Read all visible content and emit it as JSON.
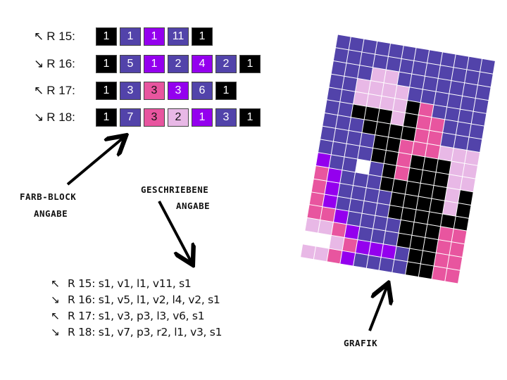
{
  "colors": {
    "s": "#000000",
    "v": "#5243aa",
    "l": "#9400ee",
    "p": "#e8559f",
    "r": "#e8b8e6",
    "w": "#ffffff"
  },
  "block_rows": [
    {
      "label": "R 15:",
      "arrow": "↖",
      "blocks": [
        {
          "c": "s",
          "n": "1"
        },
        {
          "c": "v",
          "n": "1"
        },
        {
          "c": "l",
          "n": "1"
        },
        {
          "c": "v",
          "n": "11"
        },
        {
          "c": "s",
          "n": "1"
        }
      ]
    },
    {
      "label": "R 16:",
      "arrow": "↘",
      "blocks": [
        {
          "c": "s",
          "n": "1"
        },
        {
          "c": "v",
          "n": "5"
        },
        {
          "c": "l",
          "n": "1"
        },
        {
          "c": "v",
          "n": "2"
        },
        {
          "c": "l",
          "n": "4"
        },
        {
          "c": "v",
          "n": "2"
        },
        {
          "c": "s",
          "n": "1"
        }
      ]
    },
    {
      "label": "R 17:",
      "arrow": "↖",
      "blocks": [
        {
          "c": "s",
          "n": "1"
        },
        {
          "c": "v",
          "n": "3"
        },
        {
          "c": "p",
          "n": "3"
        },
        {
          "c": "l",
          "n": "3"
        },
        {
          "c": "v",
          "n": "6"
        },
        {
          "c": "s",
          "n": "1"
        }
      ]
    },
    {
      "label": "R 18:",
      "arrow": "↘",
      "blocks": [
        {
          "c": "s",
          "n": "1"
        },
        {
          "c": "v",
          "n": "7"
        },
        {
          "c": "p",
          "n": "3"
        },
        {
          "c": "r",
          "n": "2"
        },
        {
          "c": "l",
          "n": "1"
        },
        {
          "c": "v",
          "n": "3"
        },
        {
          "c": "s",
          "n": "1"
        }
      ]
    }
  ],
  "labels": {
    "farb_block_1": "FARB-BLOCK",
    "farb_block_2": "ANGABE",
    "geschrieben_1": "GESCHRIEBENE",
    "geschrieben_2": "ANGABE",
    "grafik": "GRAFIK"
  },
  "written_rows": [
    {
      "arrow": "↖",
      "text": "R 15: s1, v1, l1, v11, s1"
    },
    {
      "arrow": "↘",
      "text": "R 16: s1, v5, l1, v2, l4, v2, s1"
    },
    {
      "arrow": "↖",
      "text": "R 17: s1, v3, p3, l3, v6, s1"
    },
    {
      "arrow": "↘",
      "text": "R 18: s1, v7, p3, r2, l1, v3, s1"
    }
  ],
  "chart_grid": [
    "vvvvvvvvvvvv",
    "vvvvvvvvvvvv",
    "vvvrrvvvvvvv",
    "vvrrrrvvvvvv",
    "vvrrrrspvvvv",
    "vvsssrsppvvv",
    "vvvssssppvvv",
    "vvvvssppprrr",
    "vvvvsspsssrr",
    "lvvwvspsssrr",
    "plvvvsssssrs",
    "plvvvvssssrs",
    "plvvvvssssss",
    "pplvvvvssspp",
    "rrplvvvssspp",
    "wwrplllvsspp",
    "rrplvvvvsspp"
  ]
}
